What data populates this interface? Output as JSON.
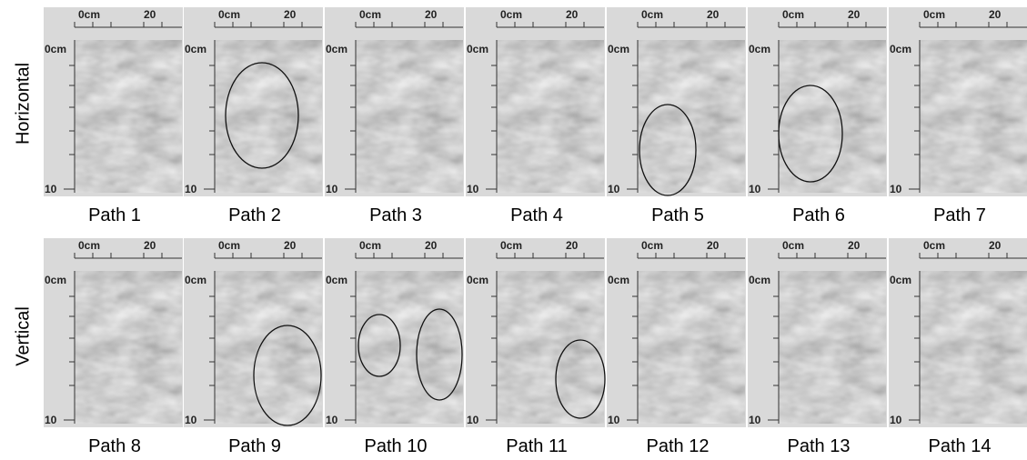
{
  "row_labels": [
    "Horizontal",
    "Vertical"
  ],
  "axis_labels": {
    "x_start": "0cm",
    "x_tick": "20",
    "y_start": "0cm",
    "y_end": "10"
  },
  "panels": [
    {
      "caption": "Path 1"
    },
    {
      "caption": "Path 2"
    },
    {
      "caption": "Path 3"
    },
    {
      "caption": "Path 4"
    },
    {
      "caption": "Path 5"
    },
    {
      "caption": "Path 6"
    },
    {
      "caption": "Path 7"
    },
    {
      "caption": "Path 8"
    },
    {
      "caption": "Path 9"
    },
    {
      "caption": "Path 10"
    },
    {
      "caption": "Path 11"
    },
    {
      "caption": "Path 12"
    },
    {
      "caption": "Path 13"
    },
    {
      "caption": "Path 14"
    }
  ]
}
